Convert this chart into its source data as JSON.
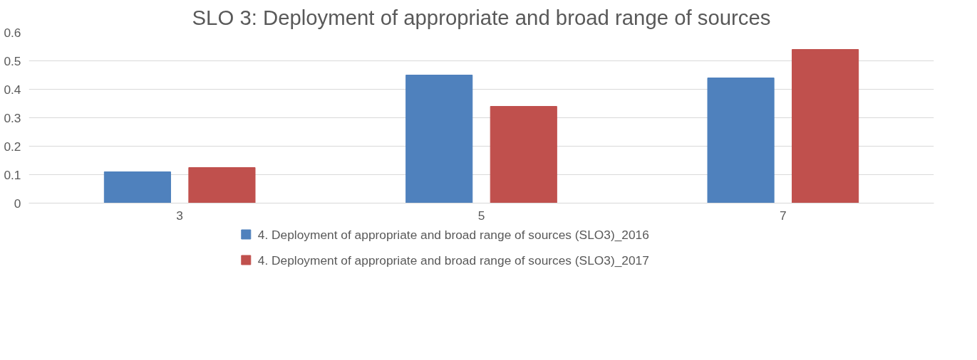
{
  "chart_data": {
    "type": "bar",
    "title": "SLO 3: Deployment of appropriate and broad range of sources",
    "categories": [
      "3",
      "5",
      "7"
    ],
    "series": [
      {
        "name": "4.  Deployment of appropriate and broad range of sources (SLO3)_2016",
        "color": "#4f81bd",
        "values": [
          0.11,
          0.45,
          0.44
        ]
      },
      {
        "name": "4.  Deployment of appropriate and broad range of sources (SLO3)_2017",
        "color": "#c0504d",
        "values": [
          0.125,
          0.34,
          0.54
        ]
      }
    ],
    "ylim": [
      0,
      0.6
    ],
    "yticks": [
      0,
      0.1,
      0.2,
      0.3,
      0.4,
      0.5,
      0.6
    ],
    "grid": "y",
    "legend": "bottom"
  }
}
